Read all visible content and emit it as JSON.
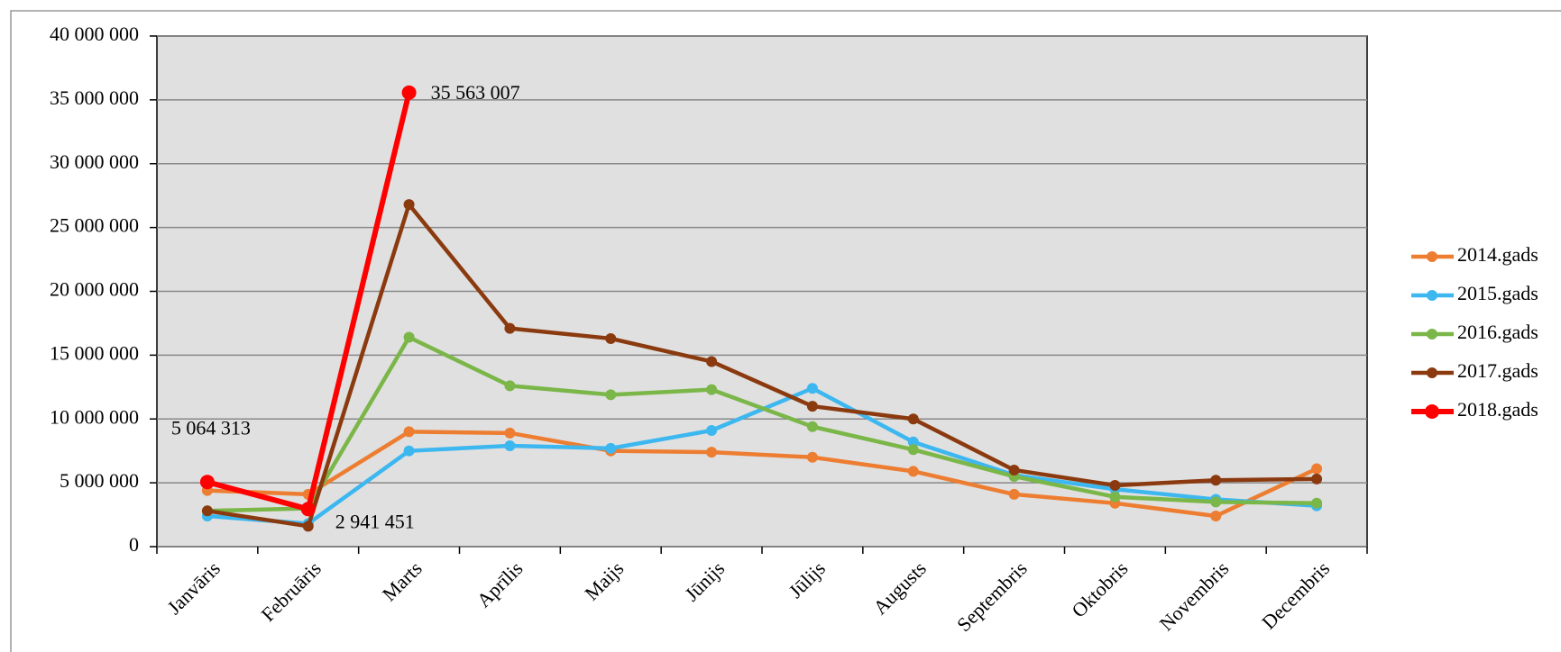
{
  "chart_data": {
    "type": "line",
    "categories": [
      "Janvāris",
      "Februāris",
      "Marts",
      "Aprīlis",
      "Maijs",
      "Jūnijs",
      "Jūlijs",
      "Augusts",
      "Septembris",
      "Oktobris",
      "Novembris",
      "Decembris"
    ],
    "series": [
      {
        "name": "2014.gads",
        "color": "#ED7D31",
        "values": [
          4400000,
          4100000,
          9000000,
          8900000,
          7500000,
          7400000,
          7000000,
          5900000,
          4100000,
          3400000,
          2400000,
          6100000
        ]
      },
      {
        "name": "2015.gads",
        "color": "#3DB7F0",
        "values": [
          2400000,
          1800000,
          7500000,
          7900000,
          7700000,
          9100000,
          12400000,
          8200000,
          5600000,
          4500000,
          3700000,
          3200000
        ]
      },
      {
        "name": "2016.gads",
        "color": "#7AB648",
        "values": [
          2800000,
          3000000,
          16400000,
          12600000,
          11900000,
          12300000,
          9400000,
          7600000,
          5500000,
          3900000,
          3500000,
          3400000
        ]
      },
      {
        "name": "2017.gads",
        "color": "#8B3A0F",
        "values": [
          2800000,
          1600000,
          26800000,
          17100000,
          16300000,
          14500000,
          11000000,
          10000000,
          6000000,
          4800000,
          5200000,
          5300000
        ]
      },
      {
        "name": "2018.gads",
        "color": "#FF0000",
        "values": [
          5064313,
          2941451,
          35563007,
          null,
          null,
          null,
          null,
          null,
          null,
          null,
          null,
          null
        ],
        "value_labels": [
          "5 064 313",
          "2 941 451",
          "35 563 007",
          null,
          null,
          null,
          null,
          null,
          null,
          null,
          null,
          null
        ]
      }
    ],
    "ylim": [
      0,
      40000000
    ],
    "yticks": [
      0,
      {
        "value": 5000000,
        "label": "5 000 000"
      },
      {
        "value": 10000000,
        "label": "10 000 000"
      },
      {
        "value": 15000000,
        "label": "15 000 000"
      },
      {
        "value": 20000000,
        "label": "20 000 000"
      },
      {
        "value": 25000000,
        "label": "25 000 000"
      },
      {
        "value": 30000000,
        "label": "30 000 000"
      },
      {
        "value": 35000000,
        "label": "35 000 000"
      },
      {
        "value": 40000000,
        "label": "40 000 000"
      }
    ],
    "grid": true,
    "legend": "right"
  }
}
